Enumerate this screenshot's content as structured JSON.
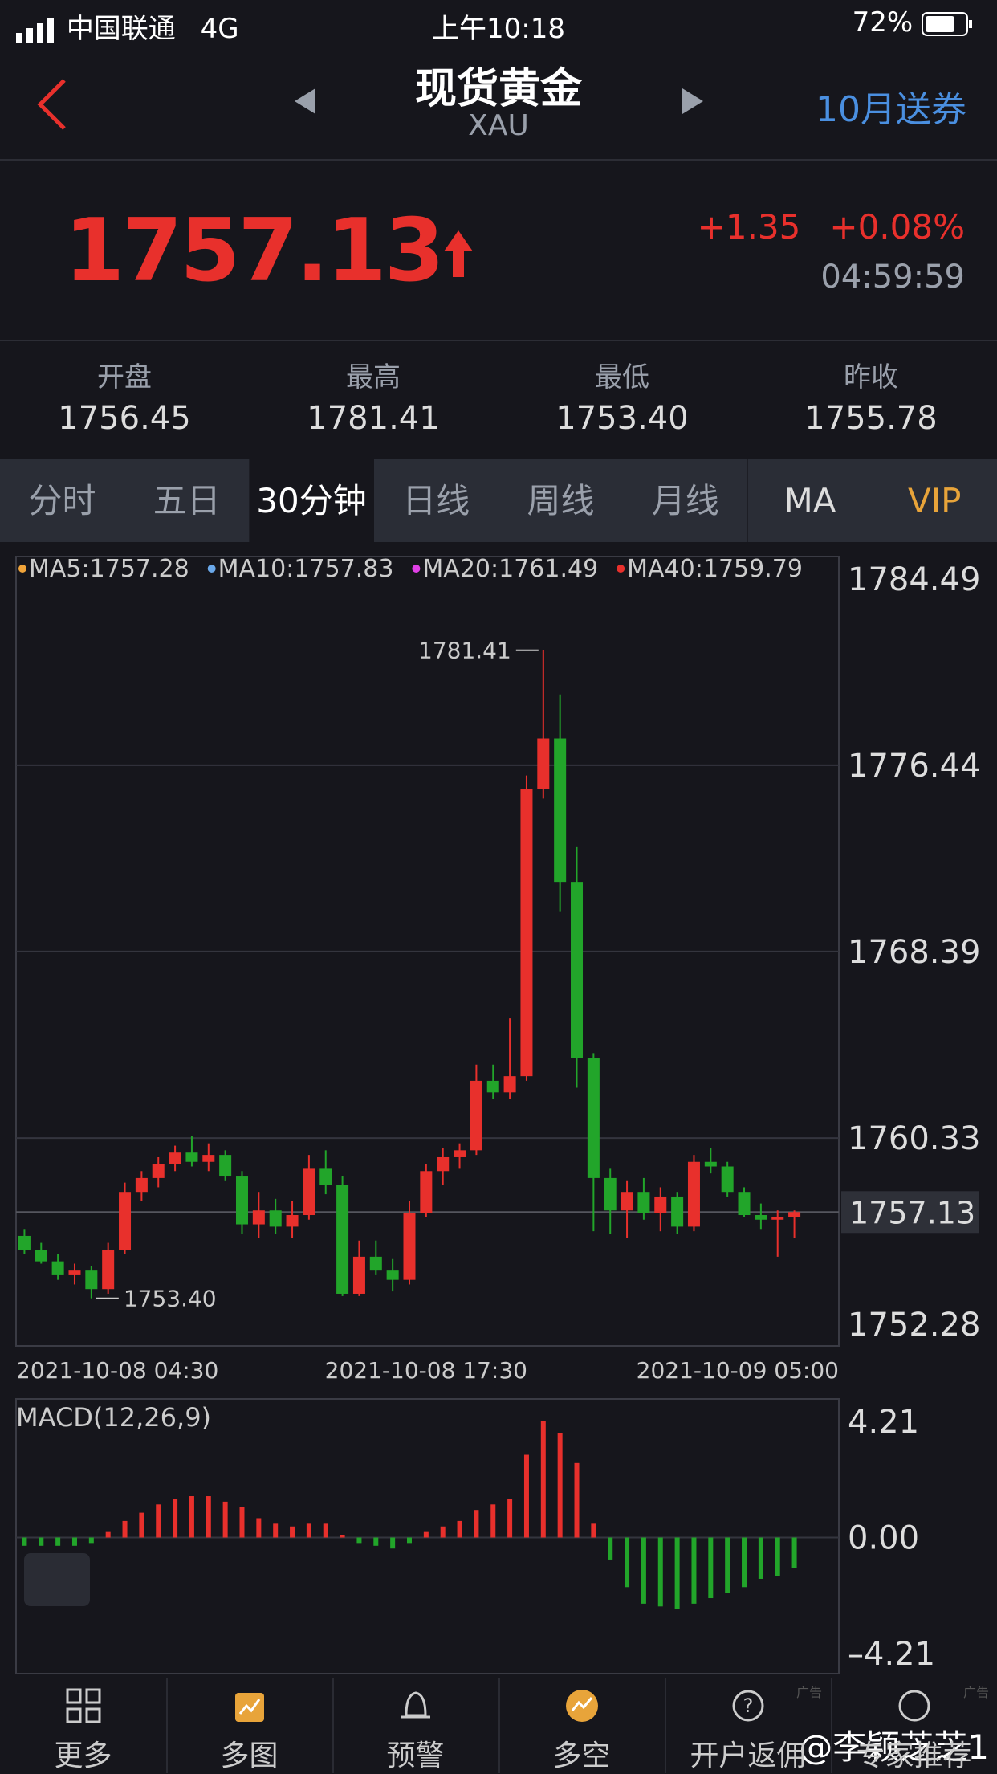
{
  "status_bar": {
    "carrier": "中国联通",
    "network": "4G",
    "time": "上午10:18",
    "battery": "72%"
  },
  "header": {
    "title": "现货黄金",
    "subtitle": "XAU",
    "promo": "10月送券"
  },
  "quote": {
    "price": "1757.13",
    "change": "+1.35",
    "change_pct": "+0.08%",
    "time": "04:59:59"
  },
  "stats": [
    {
      "label": "开盘",
      "value": "1756.45"
    },
    {
      "label": "最高",
      "value": "1781.41"
    },
    {
      "label": "最低",
      "value": "1753.40"
    },
    {
      "label": "昨收",
      "value": "1755.78"
    }
  ],
  "tabs": [
    "分时",
    "五日",
    "30分钟",
    "日线",
    "周线",
    "月线",
    "MA",
    "VIP"
  ],
  "chart_data": [
    {
      "type": "candlestick",
      "categories": [
        "2021-10-08 04:30",
        null,
        null,
        null,
        null,
        null,
        null,
        null,
        null,
        null,
        null,
        null,
        null,
        null,
        null,
        null,
        null,
        null,
        null,
        null,
        null,
        null,
        null,
        null,
        "2021-10-08 17:30",
        null,
        null,
        null,
        null,
        null,
        null,
        null,
        null,
        null,
        null,
        null,
        null,
        null,
        null,
        null,
        null,
        null,
        null,
        null,
        null,
        null,
        "2021-10-09 05:00"
      ],
      "open": [
        1756.1,
        1755.5,
        1755.0,
        1754.4,
        1754.6,
        1753.8,
        1755.5,
        1758.0,
        1758.6,
        1759.2,
        1759.7,
        1759.3,
        1759.6,
        1758.7,
        1756.6,
        1757.2,
        1756.5,
        1757.0,
        1759.0,
        1758.3,
        1753.6,
        1755.2,
        1754.6,
        1754.2,
        1757.1,
        1758.9,
        1759.5,
        1759.8,
        1762.8,
        1762.3,
        1763.0,
        1775.4,
        1777.6,
        1771.4,
        1763.8,
        1758.6,
        1757.2,
        1758.0,
        1757.1,
        1757.8,
        1756.5,
        1759.3,
        1759.1,
        1758.0,
        1757.0,
        1756.8,
        1756.9
      ],
      "high": [
        1756.4,
        1755.8,
        1755.3,
        1754.9,
        1754.8,
        1755.8,
        1758.4,
        1758.9,
        1759.5,
        1760.0,
        1760.4,
        1760.1,
        1759.8,
        1758.9,
        1758.0,
        1757.7,
        1757.6,
        1759.6,
        1759.8,
        1758.7,
        1755.9,
        1755.9,
        1755.1,
        1757.6,
        1759.2,
        1759.9,
        1760.1,
        1763.5,
        1763.5,
        1765.5,
        1776.0,
        1781.41,
        1779.5,
        1772.9,
        1764.0,
        1759.0,
        1758.5,
        1758.6,
        1758.2,
        1758.0,
        1759.6,
        1759.9,
        1759.3,
        1758.2,
        1757.5,
        1757.2,
        1757.2
      ],
      "low": [
        1755.3,
        1754.9,
        1754.2,
        1754.0,
        1753.4,
        1753.6,
        1755.3,
        1757.6,
        1758.2,
        1758.9,
        1759.1,
        1758.9,
        1758.5,
        1756.2,
        1756.0,
        1756.2,
        1756.0,
        1756.8,
        1757.9,
        1753.5,
        1753.5,
        1754.4,
        1753.7,
        1754.0,
        1756.9,
        1758.3,
        1759.0,
        1759.6,
        1762.0,
        1762.0,
        1762.8,
        1775.0,
        1770.1,
        1762.5,
        1756.3,
        1756.2,
        1756.0,
        1756.8,
        1756.3,
        1756.2,
        1756.3,
        1758.8,
        1757.8,
        1756.9,
        1756.4,
        1755.2,
        1756.0
      ],
      "close": [
        1755.5,
        1755.0,
        1754.4,
        1754.6,
        1753.8,
        1755.5,
        1758.0,
        1758.6,
        1759.2,
        1759.7,
        1759.3,
        1759.6,
        1758.7,
        1756.6,
        1757.2,
        1756.5,
        1757.0,
        1759.0,
        1758.3,
        1753.6,
        1755.2,
        1754.6,
        1754.2,
        1757.1,
        1758.9,
        1759.5,
        1759.8,
        1762.8,
        1762.3,
        1763.0,
        1775.4,
        1777.6,
        1771.4,
        1763.8,
        1758.6,
        1757.2,
        1758.0,
        1757.1,
        1757.8,
        1756.5,
        1759.3,
        1759.1,
        1758.0,
        1757.0,
        1756.8,
        1756.9,
        1757.13
      ],
      "ylim": [
        1752.28,
        1784.49
      ],
      "yticks": [
        1784.49,
        1776.44,
        1768.39,
        1760.33,
        1752.28
      ],
      "up_color": "#e8302c",
      "down_color": "#22a52a",
      "ma_legend": [
        {
          "label": "MA5:1757.28",
          "color": "#f0a43a"
        },
        {
          "label": "MA10:1757.83",
          "color": "#6aa8ea"
        },
        {
          "label": "MA20:1761.49",
          "color": "#e040e6"
        },
        {
          "label": "MA40:1759.79",
          "color": "#e8302c"
        }
      ],
      "high_label": 1781.41,
      "low_label": {
        "value": 1753.4,
        "label": "1753.40"
      },
      "last_price": 1757.13
    },
    {
      "type": "bar",
      "title": "MACD(12,26,9)",
      "values": [
        -0.3,
        -0.3,
        -0.3,
        -0.3,
        -0.2,
        0.2,
        0.6,
        0.9,
        1.2,
        1.4,
        1.5,
        1.5,
        1.3,
        1.1,
        0.7,
        0.5,
        0.4,
        0.5,
        0.5,
        0.1,
        -0.2,
        -0.3,
        -0.4,
        -0.2,
        0.2,
        0.4,
        0.6,
        1.0,
        1.2,
        1.4,
        3.0,
        4.21,
        3.8,
        2.7,
        0.5,
        -0.8,
        -1.8,
        -2.4,
        -2.5,
        -2.6,
        -2.4,
        -2.2,
        -2.0,
        -1.8,
        -1.5,
        -1.4,
        -1.1
      ],
      "ylim": [
        -4.21,
        4.21
      ],
      "yticks": [
        4.21,
        {
          "value": 0,
          "label": "0.00"
        },
        {
          "value": -4.21,
          "label": "–4.21"
        }
      ]
    }
  ],
  "nav": [
    "更多",
    "多图",
    "预警",
    "多空",
    "开户返佣",
    "专家推荐"
  ],
  "ad_label": "广告",
  "watermark": "@李颖芝芝1"
}
